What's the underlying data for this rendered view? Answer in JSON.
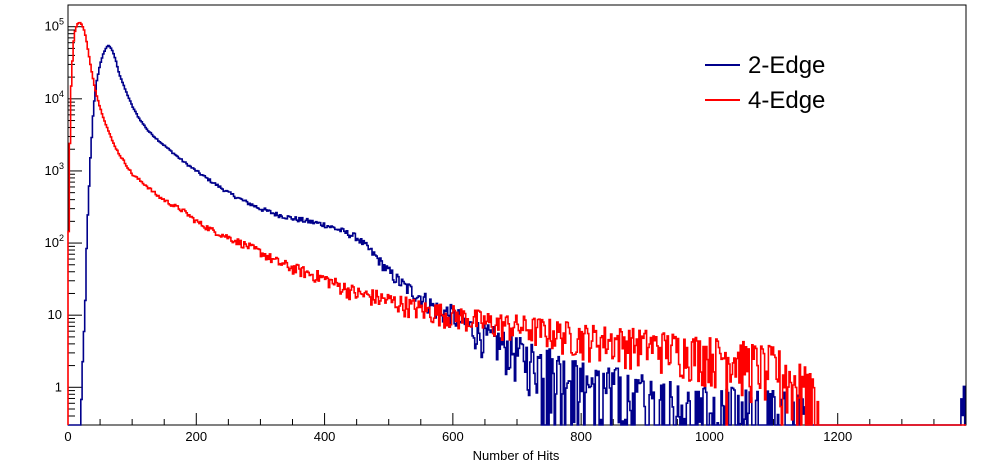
{
  "chart_data": {
    "type": "line",
    "style": "step-histogram",
    "xlabel": "Number of Hits",
    "ylabel": "",
    "title": "",
    "xlim": [
      0,
      1400
    ],
    "ylim": [
      0.3,
      200000
    ],
    "yscale": "log",
    "grid": false,
    "legend_position": "top-right",
    "x_ticks": [
      "0",
      "200",
      "400",
      "600",
      "800",
      "1000",
      "1200"
    ],
    "y_ticks": [
      {
        "value": 1,
        "label": "1"
      },
      {
        "value": 10,
        "label": "10"
      },
      {
        "value": 100,
        "label": "10",
        "sup": "2"
      },
      {
        "value": 1000,
        "label": "10",
        "sup": "3"
      },
      {
        "value": 10000,
        "label": "10",
        "sup": "4"
      },
      {
        "value": 100000,
        "label": "10",
        "sup": "5"
      }
    ],
    "series": [
      {
        "name": "2-Edge",
        "color": "#00008b",
        "x": [
          0,
          18,
          20,
          22,
          25,
          30,
          35,
          40,
          45,
          50,
          55,
          60,
          63,
          66,
          70,
          75,
          80,
          90,
          100,
          110,
          125,
          140,
          160,
          180,
          200,
          225,
          250,
          275,
          300,
          325,
          350,
          375,
          400,
          425,
          450,
          465,
          480,
          500,
          525,
          550,
          575,
          600,
          625,
          650,
          675,
          700,
          725,
          750,
          775,
          800,
          825,
          850,
          875,
          900,
          925,
          950,
          975,
          1000,
          1050,
          1100,
          1150,
          1200,
          1250,
          1300,
          1350,
          1390,
          1395,
          1400
        ],
        "values": [
          0,
          0,
          0.3,
          1,
          5,
          150,
          1500,
          8000,
          18000,
          30000,
          42000,
          52000,
          55000,
          52000,
          45000,
          33000,
          22000,
          13000,
          8000,
          5500,
          3600,
          2700,
          1900,
          1350,
          1000,
          700,
          500,
          380,
          300,
          250,
          220,
          200,
          180,
          150,
          120,
          90,
          65,
          40,
          25,
          18,
          12,
          10,
          7,
          5,
          4,
          3,
          2.5,
          2,
          1.5,
          1.2,
          1,
          1,
          1,
          0.8,
          0.7,
          0.6,
          0.5,
          0.6,
          0.5,
          0.5,
          0.4,
          0,
          0,
          0,
          0,
          0,
          1,
          0
        ]
      },
      {
        "name": "4-Edge",
        "color": "#ff0000",
        "x": [
          0,
          2,
          5,
          8,
          10,
          13,
          15,
          18,
          20,
          22,
          25,
          28,
          30,
          35,
          40,
          45,
          50,
          60,
          70,
          80,
          90,
          100,
          120,
          140,
          160,
          180,
          200,
          225,
          250,
          275,
          300,
          325,
          350,
          375,
          400,
          425,
          450,
          475,
          500,
          525,
          550,
          575,
          600,
          625,
          650,
          700,
          750,
          800,
          850,
          900,
          950,
          1000,
          1050,
          1100,
          1150,
          1160,
          1170,
          1180,
          1200,
          1300,
          1400
        ],
        "values": [
          20,
          1000,
          15000,
          50000,
          80000,
          100000,
          110000,
          115000,
          112000,
          105000,
          90000,
          70000,
          55000,
          30000,
          17000,
          11000,
          7500,
          4200,
          2500,
          1700,
          1250,
          900,
          650,
          450,
          350,
          280,
          200,
          150,
          120,
          95,
          75,
          55,
          45,
          38,
          32,
          25,
          20,
          18,
          16,
          14,
          12,
          11,
          10,
          9,
          8,
          7,
          6,
          5,
          4.5,
          4,
          3.5,
          3,
          2.5,
          2,
          1,
          0.8,
          0.5,
          0,
          0,
          0,
          0
        ]
      }
    ]
  }
}
